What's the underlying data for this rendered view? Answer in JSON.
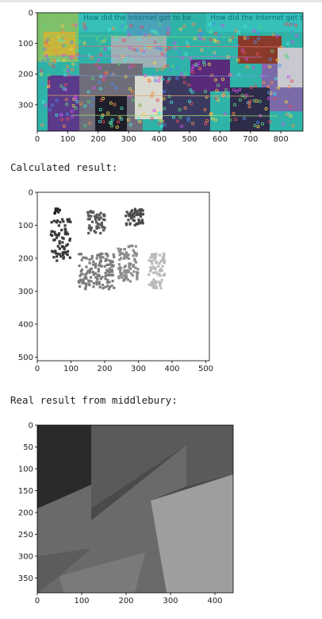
{
  "captions": {
    "calculated": "Calculated result:",
    "real": "Real result from middlebury:"
  },
  "plots": {
    "stereo_overlay": {
      "image_text": "How did the Internet get to be",
      "x_ticks": [
        "0",
        "100",
        "200",
        "300",
        "400",
        "500",
        "600",
        "700",
        "800"
      ],
      "y_ticks": [
        "0",
        "100",
        "200",
        "300"
      ]
    },
    "calculated": {
      "x_ticks": [
        "0",
        "100",
        "200",
        "300",
        "400",
        "500"
      ],
      "y_ticks": [
        "0",
        "100",
        "200",
        "300",
        "400",
        "500"
      ]
    },
    "real": {
      "x_ticks": [
        "0",
        "100",
        "200",
        "300",
        "400"
      ],
      "y_ticks": [
        "0",
        "50",
        "100",
        "150",
        "200",
        "250",
        "300",
        "350"
      ]
    }
  }
}
